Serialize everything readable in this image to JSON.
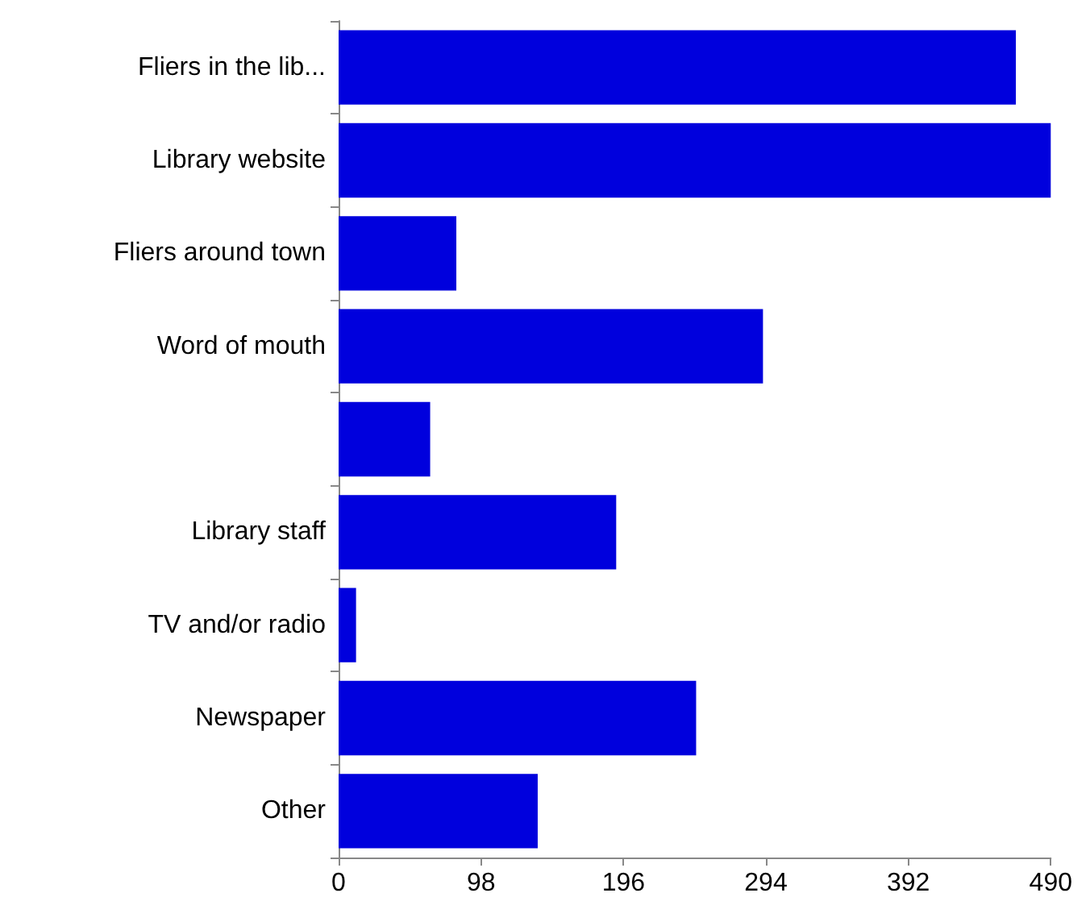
{
  "chart_data": {
    "type": "bar",
    "orientation": "horizontal",
    "categories": [
      "Fliers in the lib...",
      "Library website",
      "Fliers around town",
      "Word of mouth",
      null,
      "Library staff",
      "TV and/or radio",
      "Newspaper",
      "Other"
    ],
    "values": [
      466,
      490,
      81,
      292,
      63,
      191,
      12,
      246,
      137
    ],
    "color": "#0000dd",
    "xlim": [
      0,
      490
    ],
    "xticks": [
      0,
      98,
      196,
      294,
      392,
      490
    ],
    "grid": false
  }
}
